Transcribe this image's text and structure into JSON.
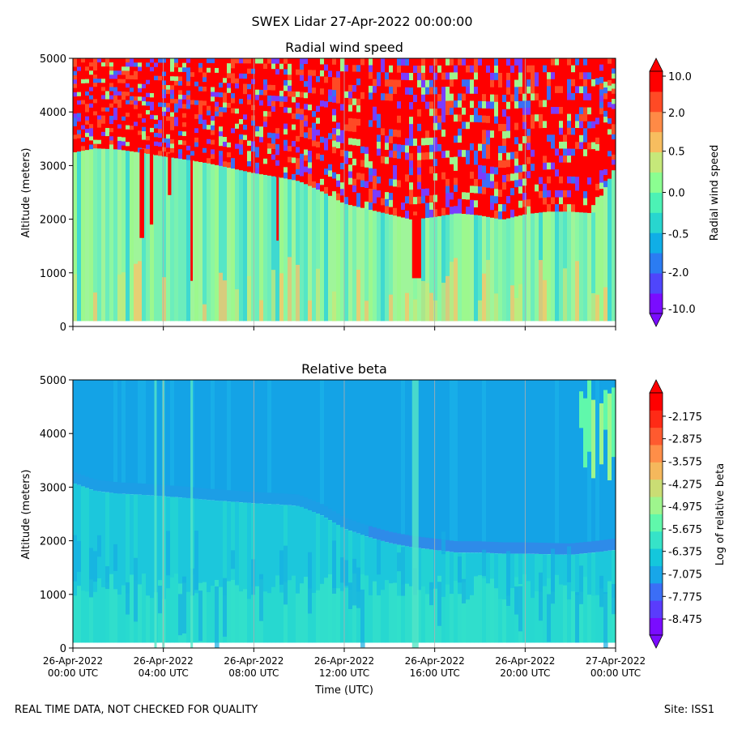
{
  "figure": {
    "title": "SWEX Lidar 27-Apr-2022 00:00:00",
    "footer_left": "REAL TIME DATA, NOT CHECKED FOR QUALITY",
    "footer_right": "Site: ISS1"
  },
  "chart_data": [
    {
      "type": "heatmap",
      "title": "Radial wind speed",
      "ylabel": "Altitude (meters)",
      "xlabel": "",
      "colorbar_label": "Radial wind speed",
      "ylim": [
        0,
        5000
      ],
      "yticks": [
        "0",
        "1000",
        "2000",
        "3000",
        "4000",
        "5000"
      ],
      "xticks_shown": false,
      "colormap": "rainbow",
      "colorbar_ticks": [
        "-10.0",
        "-2.0",
        "-0.5",
        "0.0",
        "0.5",
        "2.0",
        "10.0"
      ],
      "colorbar_levels": [
        "#7a0cff",
        "#4f46fb",
        "#2b7cf2",
        "#10aee6",
        "#28d6cf",
        "#4cf2b5",
        "#8bfe91",
        "#c6e87a",
        "#f7bd5f",
        "#ff8a46",
        "#ff4a25",
        "#ff0000"
      ],
      "noise_top_m": [
        3250,
        3330,
        3310,
        3250,
        3180,
        3120,
        3050,
        2960,
        2870,
        2800,
        2720,
        2530,
        2300,
        2200,
        2100,
        2000,
        2050,
        2120,
        2080,
        2000,
        2100,
        2150,
        2150,
        2120,
        3000
      ],
      "x_hours": [
        0,
        1,
        2,
        3,
        4,
        5,
        6,
        7,
        8,
        9,
        10,
        11,
        12,
        13,
        14,
        15,
        16,
        17,
        18,
        19,
        20,
        21,
        22,
        23,
        24
      ],
      "spikes": [
        {
          "start_hour": 2.95,
          "end_hour": 3.15,
          "bottom_m": 1650
        },
        {
          "start_hour": 3.4,
          "end_hour": 3.55,
          "bottom_m": 1900
        },
        {
          "start_hour": 4.2,
          "end_hour": 4.35,
          "bottom_m": 2450
        },
        {
          "start_hour": 5.2,
          "end_hour": 5.3,
          "bottom_m": 850
        },
        {
          "start_hour": 9.0,
          "end_hour": 9.1,
          "bottom_m": 1600
        },
        {
          "start_hour": 15.0,
          "end_hour": 15.4,
          "bottom_m": 900
        }
      ],
      "data_floor_m": 100
    },
    {
      "type": "heatmap",
      "title": "Relative beta",
      "ylabel": "Altitude (meters)",
      "xlabel": "Time (UTC)",
      "colorbar_label": "Log of relative beta",
      "ylim": [
        0,
        5000
      ],
      "yticks": [
        "0",
        "1000",
        "2000",
        "3000",
        "4000",
        "5000"
      ],
      "xticks": [
        {
          "date": "26-Apr-2022",
          "time": "00:00 UTC"
        },
        {
          "date": "26-Apr-2022",
          "time": "04:00 UTC"
        },
        {
          "date": "26-Apr-2022",
          "time": "08:00 UTC"
        },
        {
          "date": "26-Apr-2022",
          "time": "12:00 UTC"
        },
        {
          "date": "26-Apr-2022",
          "time": "16:00 UTC"
        },
        {
          "date": "26-Apr-2022",
          "time": "20:00 UTC"
        },
        {
          "date": "27-Apr-2022",
          "time": "00:00 UTC"
        }
      ],
      "colormap": "rainbow",
      "colorbar_ticks": [
        "-8.475",
        "-7.775",
        "-7.075",
        "-6.375",
        "-5.675",
        "-4.975",
        "-4.275",
        "-3.575",
        "-2.875",
        "-2.175"
      ],
      "colorbar_levels": [
        "#7a0cff",
        "#5a3cfc",
        "#3b6ef6",
        "#18a6e9",
        "#14c7dc",
        "#36e3c8",
        "#60f8ab",
        "#9ef58d",
        "#cadd74",
        "#f5b85c",
        "#ff8e48",
        "#ff5a2f",
        "#ff2a16",
        "#ff0000"
      ],
      "boundary_layer_top_m": [
        3200,
        3050,
        3000,
        2980,
        2950,
        2920,
        2880,
        2850,
        2820,
        2800,
        2770,
        2600,
        2350,
        2200,
        2080,
        2000,
        1950,
        1900,
        1900,
        1880,
        1880,
        1870,
        1860,
        1900,
        1950
      ],
      "x_hours": [
        0,
        1,
        2,
        3,
        4,
        5,
        6,
        7,
        8,
        9,
        10,
        11,
        12,
        13,
        14,
        15,
        16,
        17,
        18,
        19,
        20,
        21,
        22,
        23,
        24
      ],
      "data_floor_m": 100
    }
  ]
}
